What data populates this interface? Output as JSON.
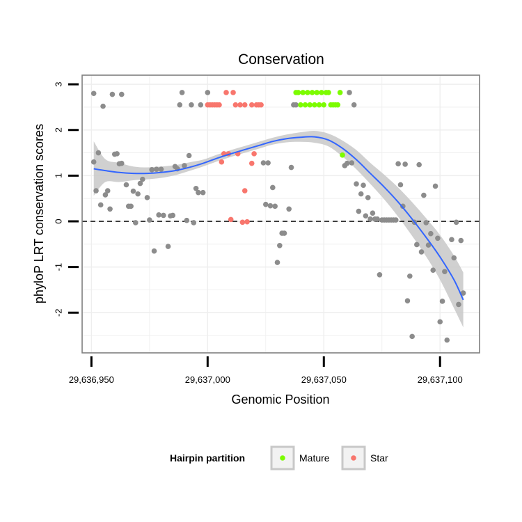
{
  "chart_data": {
    "type": "scatter",
    "title": "Conservation",
    "xlabel": "Genomic Position",
    "ylabel": "phyloP LRT conservation scores",
    "xlim": [
      29636946,
      29637117
    ],
    "ylim": [
      -2.88,
      3.2
    ],
    "x_ticks": [
      29636950,
      29637000,
      29637050,
      29637100
    ],
    "x_tick_labels": [
      "29,636,950",
      "29,637,000",
      "29,637,050",
      "29,637,100"
    ],
    "y_ticks": [
      -2,
      -1,
      0,
      1,
      2,
      3
    ],
    "y_tick_labels": [
      "-2",
      "-1",
      "0",
      "1",
      "2",
      "3"
    ],
    "reference_line": {
      "y": 0,
      "style": "dashed",
      "color": "#000000"
    },
    "colors": {
      "other": "#8c8c8c",
      "mature": "#7cfc00",
      "star": "#f8766d",
      "smooth_line": "#3366ff",
      "ribbon": "#c8c8c8",
      "panel_border": "#7f7f7f",
      "grid": "#eeeeee"
    },
    "legend": {
      "title": "Hairpin partition",
      "position": "bottom",
      "entries": [
        {
          "label": "Mature",
          "color": "#7cfc00"
        },
        {
          "label": "Star",
          "color": "#f8766d"
        }
      ]
    },
    "smooth": {
      "x": [
        29636951,
        29636956,
        29636962,
        29636968,
        29636974,
        29636980,
        29636986,
        29636992,
        29636998,
        29637004,
        29637010,
        29637016,
        29637022,
        29637028,
        29637034,
        29637040,
        29637046,
        29637052,
        29637058,
        29637064,
        29637070,
        29637076,
        29637082,
        29637088,
        29637094,
        29637100,
        29637106,
        29637110
      ],
      "y": [
        1.15,
        1.11,
        1.07,
        1.05,
        1.05,
        1.07,
        1.11,
        1.18,
        1.27,
        1.38,
        1.48,
        1.57,
        1.66,
        1.75,
        1.81,
        1.84,
        1.85,
        1.78,
        1.6,
        1.35,
        1.05,
        0.75,
        0.42,
        0.05,
        -0.35,
        -0.78,
        -1.28,
        -1.72
      ],
      "lower": [
        0.56,
        0.86,
        0.86,
        0.9,
        0.92,
        0.95,
        1.01,
        1.1,
        1.2,
        1.31,
        1.41,
        1.5,
        1.59,
        1.68,
        1.73,
        1.74,
        1.72,
        1.64,
        1.42,
        1.14,
        0.82,
        0.48,
        0.1,
        -0.32,
        -0.77,
        -1.28,
        -1.9,
        -2.32
      ],
      "upper": [
        1.75,
        1.36,
        1.28,
        1.2,
        1.18,
        1.2,
        1.23,
        1.29,
        1.35,
        1.46,
        1.56,
        1.65,
        1.74,
        1.83,
        1.9,
        1.95,
        1.98,
        1.92,
        1.77,
        1.56,
        1.28,
        1.02,
        0.74,
        0.42,
        0.07,
        -0.3,
        -0.75,
        -1.12
      ]
    },
    "points": [
      {
        "x": 29636951,
        "y": 2.8,
        "group": "other"
      },
      {
        "x": 29636951,
        "y": 1.3,
        "group": "other"
      },
      {
        "x": 29636952,
        "y": 0.67,
        "group": "other"
      },
      {
        "x": 29636953,
        "y": 1.5,
        "group": "other"
      },
      {
        "x": 29636954,
        "y": 0.36,
        "group": "other"
      },
      {
        "x": 29636955,
        "y": 2.52,
        "group": "other"
      },
      {
        "x": 29636956,
        "y": 0.58,
        "group": "other"
      },
      {
        "x": 29636957,
        "y": 0.67,
        "group": "other"
      },
      {
        "x": 29636958,
        "y": 0.27,
        "group": "other"
      },
      {
        "x": 29636959,
        "y": 2.78,
        "group": "other"
      },
      {
        "x": 29636960,
        "y": 1.47,
        "group": "other"
      },
      {
        "x": 29636961,
        "y": 1.48,
        "group": "other"
      },
      {
        "x": 29636962,
        "y": 1.26,
        "group": "other"
      },
      {
        "x": 29636963,
        "y": 2.78,
        "group": "other"
      },
      {
        "x": 29636963,
        "y": 1.27,
        "group": "other"
      },
      {
        "x": 29636965,
        "y": 0.8,
        "group": "other"
      },
      {
        "x": 29636966,
        "y": 0.33,
        "group": "other"
      },
      {
        "x": 29636967,
        "y": 0.33,
        "group": "other"
      },
      {
        "x": 29636968,
        "y": 0.66,
        "group": "other"
      },
      {
        "x": 29636969,
        "y": -0.03,
        "group": "other"
      },
      {
        "x": 29636970,
        "y": 0.6,
        "group": "other"
      },
      {
        "x": 29636971,
        "y": 0.83,
        "group": "other"
      },
      {
        "x": 29636972,
        "y": 0.92,
        "group": "other"
      },
      {
        "x": 29636974,
        "y": 0.52,
        "group": "other"
      },
      {
        "x": 29636975,
        "y": 0.03,
        "group": "other"
      },
      {
        "x": 29636976,
        "y": 1.13,
        "group": "other"
      },
      {
        "x": 29636977,
        "y": -0.65,
        "group": "other"
      },
      {
        "x": 29636978,
        "y": 1.14,
        "group": "other"
      },
      {
        "x": 29636979,
        "y": 0.14,
        "group": "other"
      },
      {
        "x": 29636980,
        "y": 1.14,
        "group": "other"
      },
      {
        "x": 29636981,
        "y": 0.13,
        "group": "other"
      },
      {
        "x": 29636983,
        "y": -0.55,
        "group": "other"
      },
      {
        "x": 29636984,
        "y": 0.12,
        "group": "other"
      },
      {
        "x": 29636985,
        "y": 0.13,
        "group": "other"
      },
      {
        "x": 29636986,
        "y": 1.2,
        "group": "other"
      },
      {
        "x": 29636987,
        "y": 1.15,
        "group": "other"
      },
      {
        "x": 29636988,
        "y": 2.55,
        "group": "other"
      },
      {
        "x": 29636989,
        "y": 2.82,
        "group": "other"
      },
      {
        "x": 29636990,
        "y": 1.22,
        "group": "other"
      },
      {
        "x": 29636991,
        "y": 0.02,
        "group": "other"
      },
      {
        "x": 29636992,
        "y": 1.44,
        "group": "other"
      },
      {
        "x": 29636993,
        "y": 2.55,
        "group": "other"
      },
      {
        "x": 29636994,
        "y": -0.03,
        "group": "other"
      },
      {
        "x": 29636995,
        "y": 0.72,
        "group": "other"
      },
      {
        "x": 29636996,
        "y": 0.63,
        "group": "other"
      },
      {
        "x": 29636997,
        "y": 2.55,
        "group": "other"
      },
      {
        "x": 29636998,
        "y": 0.63,
        "group": "other"
      },
      {
        "x": 29637000,
        "y": 2.82,
        "group": "other"
      },
      {
        "x": 29637000,
        "y": 2.55,
        "group": "star"
      },
      {
        "x": 29637001,
        "y": 2.55,
        "group": "star"
      },
      {
        "x": 29637002,
        "y": 2.55,
        "group": "star"
      },
      {
        "x": 29637003,
        "y": 2.55,
        "group": "star"
      },
      {
        "x": 29637004,
        "y": 2.55,
        "group": "star"
      },
      {
        "x": 29637005,
        "y": 2.55,
        "group": "star"
      },
      {
        "x": 29637006,
        "y": 1.3,
        "group": "star"
      },
      {
        "x": 29637007,
        "y": 1.48,
        "group": "star"
      },
      {
        "x": 29637008,
        "y": 2.82,
        "group": "star"
      },
      {
        "x": 29637009,
        "y": 1.48,
        "group": "star"
      },
      {
        "x": 29637010,
        "y": 0.04,
        "group": "star"
      },
      {
        "x": 29637011,
        "y": 2.82,
        "group": "star"
      },
      {
        "x": 29637012,
        "y": 2.55,
        "group": "star"
      },
      {
        "x": 29637013,
        "y": 1.48,
        "group": "star"
      },
      {
        "x": 29637014,
        "y": 2.55,
        "group": "star"
      },
      {
        "x": 29637015,
        "y": -0.02,
        "group": "star"
      },
      {
        "x": 29637016,
        "y": 2.55,
        "group": "star"
      },
      {
        "x": 29637016,
        "y": 0.67,
        "group": "star"
      },
      {
        "x": 29637017,
        "y": -0.01,
        "group": "star"
      },
      {
        "x": 29637019,
        "y": 2.55,
        "group": "star"
      },
      {
        "x": 29637019,
        "y": 1.27,
        "group": "star"
      },
      {
        "x": 29637020,
        "y": 1.48,
        "group": "star"
      },
      {
        "x": 29637021,
        "y": 2.55,
        "group": "star"
      },
      {
        "x": 29637022,
        "y": 2.55,
        "group": "star"
      },
      {
        "x": 29637023,
        "y": 2.55,
        "group": "star"
      },
      {
        "x": 29637024,
        "y": 1.28,
        "group": "other"
      },
      {
        "x": 29637025,
        "y": 0.37,
        "group": "other"
      },
      {
        "x": 29637026,
        "y": 1.28,
        "group": "other"
      },
      {
        "x": 29637027,
        "y": 0.34,
        "group": "other"
      },
      {
        "x": 29637028,
        "y": 0.74,
        "group": "other"
      },
      {
        "x": 29637029,
        "y": 0.33,
        "group": "other"
      },
      {
        "x": 29637030,
        "y": -0.9,
        "group": "other"
      },
      {
        "x": 29637031,
        "y": -0.53,
        "group": "other"
      },
      {
        "x": 29637032,
        "y": -0.26,
        "group": "other"
      },
      {
        "x": 29637033,
        "y": -0.26,
        "group": "other"
      },
      {
        "x": 29637035,
        "y": 0.27,
        "group": "other"
      },
      {
        "x": 29637036,
        "y": 1.18,
        "group": "other"
      },
      {
        "x": 29637037,
        "y": 2.55,
        "group": "other"
      },
      {
        "x": 29637038,
        "y": 2.55,
        "group": "other"
      },
      {
        "x": 29637038,
        "y": 2.82,
        "group": "mature"
      },
      {
        "x": 29637039,
        "y": 2.82,
        "group": "mature"
      },
      {
        "x": 29637040,
        "y": 2.55,
        "group": "mature"
      },
      {
        "x": 29637041,
        "y": 2.82,
        "group": "mature"
      },
      {
        "x": 29637042,
        "y": 2.55,
        "group": "mature"
      },
      {
        "x": 29637043,
        "y": 2.82,
        "group": "mature"
      },
      {
        "x": 29637044,
        "y": 2.55,
        "group": "mature"
      },
      {
        "x": 29637045,
        "y": 2.82,
        "group": "mature"
      },
      {
        "x": 29637046,
        "y": 2.55,
        "group": "mature"
      },
      {
        "x": 29637047,
        "y": 2.82,
        "group": "mature"
      },
      {
        "x": 29637048,
        "y": 2.55,
        "group": "mature"
      },
      {
        "x": 29637049,
        "y": 2.82,
        "group": "mature"
      },
      {
        "x": 29637050,
        "y": 2.55,
        "group": "mature"
      },
      {
        "x": 29637051,
        "y": 2.82,
        "group": "mature"
      },
      {
        "x": 29637052,
        "y": 2.82,
        "group": "mature"
      },
      {
        "x": 29637053,
        "y": 2.55,
        "group": "mature"
      },
      {
        "x": 29637054,
        "y": 2.55,
        "group": "mature"
      },
      {
        "x": 29637055,
        "y": 2.55,
        "group": "mature"
      },
      {
        "x": 29637056,
        "y": 2.55,
        "group": "mature"
      },
      {
        "x": 29637057,
        "y": 2.82,
        "group": "mature"
      },
      {
        "x": 29637058,
        "y": 1.45,
        "group": "mature"
      },
      {
        "x": 29637059,
        "y": 1.22,
        "group": "other"
      },
      {
        "x": 29637060,
        "y": 1.27,
        "group": "other"
      },
      {
        "x": 29637061,
        "y": 2.82,
        "group": "other"
      },
      {
        "x": 29637062,
        "y": 1.28,
        "group": "other"
      },
      {
        "x": 29637063,
        "y": 2.55,
        "group": "other"
      },
      {
        "x": 29637064,
        "y": 0.82,
        "group": "other"
      },
      {
        "x": 29637065,
        "y": 0.22,
        "group": "other"
      },
      {
        "x": 29637066,
        "y": 0.6,
        "group": "other"
      },
      {
        "x": 29637067,
        "y": 0.79,
        "group": "other"
      },
      {
        "x": 29637068,
        "y": 0.12,
        "group": "other"
      },
      {
        "x": 29637069,
        "y": 0.52,
        "group": "other"
      },
      {
        "x": 29637070,
        "y": 0.05,
        "group": "other"
      },
      {
        "x": 29637071,
        "y": 0.18,
        "group": "other"
      },
      {
        "x": 29637072,
        "y": 0.05,
        "group": "other"
      },
      {
        "x": 29637073,
        "y": 0.05,
        "group": "other"
      },
      {
        "x": 29637074,
        "y": -1.17,
        "group": "other"
      },
      {
        "x": 29637075,
        "y": 0.03,
        "group": "other"
      },
      {
        "x": 29637076,
        "y": 0.03,
        "group": "other"
      },
      {
        "x": 29637077,
        "y": 0.03,
        "group": "other"
      },
      {
        "x": 29637078,
        "y": 0.03,
        "group": "other"
      },
      {
        "x": 29637079,
        "y": 0.03,
        "group": "other"
      },
      {
        "x": 29637080,
        "y": 0.03,
        "group": "other"
      },
      {
        "x": 29637081,
        "y": 0.03,
        "group": "other"
      },
      {
        "x": 29637082,
        "y": 1.26,
        "group": "other"
      },
      {
        "x": 29637083,
        "y": 0.8,
        "group": "other"
      },
      {
        "x": 29637084,
        "y": 0.33,
        "group": "other"
      },
      {
        "x": 29637085,
        "y": 1.25,
        "group": "other"
      },
      {
        "x": 29637086,
        "y": -1.74,
        "group": "other"
      },
      {
        "x": 29637087,
        "y": -1.2,
        "group": "other"
      },
      {
        "x": 29637088,
        "y": -2.52,
        "group": "other"
      },
      {
        "x": 29637089,
        "y": -0.02,
        "group": "other"
      },
      {
        "x": 29637090,
        "y": -0.51,
        "group": "other"
      },
      {
        "x": 29637091,
        "y": 1.24,
        "group": "other"
      },
      {
        "x": 29637092,
        "y": -0.67,
        "group": "other"
      },
      {
        "x": 29637093,
        "y": 0.57,
        "group": "other"
      },
      {
        "x": 29637094,
        "y": -0.03,
        "group": "other"
      },
      {
        "x": 29637095,
        "y": -0.52,
        "group": "other"
      },
      {
        "x": 29637096,
        "y": -0.27,
        "group": "other"
      },
      {
        "x": 29637097,
        "y": -1.07,
        "group": "other"
      },
      {
        "x": 29637098,
        "y": 0.77,
        "group": "other"
      },
      {
        "x": 29637099,
        "y": -0.37,
        "group": "other"
      },
      {
        "x": 29637100,
        "y": -2.2,
        "group": "other"
      },
      {
        "x": 29637101,
        "y": -1.75,
        "group": "other"
      },
      {
        "x": 29637102,
        "y": -1.1,
        "group": "other"
      },
      {
        "x": 29637103,
        "y": -2.6,
        "group": "other"
      },
      {
        "x": 29637105,
        "y": -0.4,
        "group": "other"
      },
      {
        "x": 29637106,
        "y": -0.8,
        "group": "other"
      },
      {
        "x": 29637107,
        "y": -0.02,
        "group": "other"
      },
      {
        "x": 29637108,
        "y": -1.82,
        "group": "other"
      },
      {
        "x": 29637109,
        "y": -0.42,
        "group": "other"
      },
      {
        "x": 29637110,
        "y": -1.57,
        "group": "other"
      }
    ]
  }
}
